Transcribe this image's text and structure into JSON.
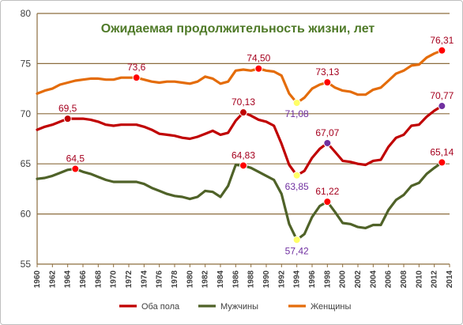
{
  "chart_data": {
    "type": "line",
    "title": "Ожидаемая продолжительность жизни, лет",
    "title_color": "#4f7a28",
    "ylim": [
      55,
      80
    ],
    "yticks": [
      55,
      60,
      65,
      70,
      75,
      80
    ],
    "xticks": [
      1960,
      1962,
      1964,
      1966,
      1968,
      1970,
      1972,
      1974,
      1976,
      1978,
      1980,
      1982,
      1984,
      1986,
      1988,
      1990,
      1992,
      1994,
      1996,
      1998,
      2000,
      2002,
      2004,
      2006,
      2008,
      2010,
      2012,
      2014
    ],
    "xlim": [
      1960,
      2014
    ],
    "legend_position": "bottom",
    "grid": "horizontal",
    "series": [
      {
        "name": "Оба пола",
        "color": "#c00000",
        "label_color": "#a5001e",
        "x": [
          1960,
          1961,
          1962,
          1963,
          1964,
          1965,
          1966,
          1967,
          1968,
          1969,
          1970,
          1971,
          1972,
          1973,
          1974,
          1975,
          1976,
          1977,
          1978,
          1979,
          1980,
          1981,
          1982,
          1983,
          1984,
          1985,
          1986,
          1987,
          1988,
          1989,
          1990,
          1991,
          1992,
          1993,
          1994,
          1995,
          1996,
          1997,
          1998,
          1999,
          2000,
          2001,
          2002,
          2003,
          2004,
          2005,
          2006,
          2007,
          2008,
          2009,
          2010,
          2011,
          2012,
          2013
        ],
        "y": [
          68.4,
          68.7,
          68.9,
          69.2,
          69.5,
          69.5,
          69.5,
          69.4,
          69.2,
          68.9,
          68.8,
          68.9,
          68.9,
          68.9,
          68.7,
          68.4,
          68.0,
          67.9,
          67.8,
          67.6,
          67.5,
          67.7,
          68.0,
          68.3,
          67.9,
          68.1,
          69.3,
          70.13,
          69.8,
          69.4,
          69.2,
          68.8,
          67.0,
          64.9,
          63.85,
          64.3,
          65.6,
          66.5,
          67.07,
          66.2,
          65.3,
          65.2,
          65.0,
          64.9,
          65.3,
          65.4,
          66.7,
          67.6,
          67.9,
          68.8,
          68.9,
          69.7,
          70.3,
          70.77
        ],
        "labels": [
          {
            "x": 1964,
            "y": 69.5,
            "text": "69,5",
            "pos": "above",
            "marker": "#c00000"
          },
          {
            "x": 1987,
            "y": 70.13,
            "text": "70,13",
            "pos": "above",
            "marker": "#c00000"
          },
          {
            "x": 1994,
            "y": 63.85,
            "text": "63,85",
            "pos": "below",
            "marker": "#ffff66",
            "color": "#7030a0"
          },
          {
            "x": 1998,
            "y": 67.07,
            "text": "67,07",
            "pos": "above",
            "marker": "#7030a0"
          },
          {
            "x": 2013,
            "y": 70.77,
            "text": "70,77",
            "pos": "above",
            "marker": "#7030a0"
          }
        ]
      },
      {
        "name": "Мужчины",
        "color": "#4f6228",
        "label_color": "#a5001e",
        "x": [
          1960,
          1961,
          1962,
          1963,
          1964,
          1965,
          1966,
          1967,
          1968,
          1969,
          1970,
          1971,
          1972,
          1973,
          1974,
          1975,
          1976,
          1977,
          1978,
          1979,
          1980,
          1981,
          1982,
          1983,
          1984,
          1985,
          1986,
          1987,
          1988,
          1989,
          1990,
          1991,
          1992,
          1993,
          1994,
          1995,
          1996,
          1997,
          1998,
          1999,
          2000,
          2001,
          2002,
          2003,
          2004,
          2005,
          2006,
          2007,
          2008,
          2009,
          2010,
          2011,
          2012,
          2013
        ],
        "y": [
          63.5,
          63.6,
          63.8,
          64.1,
          64.4,
          64.5,
          64.2,
          64.0,
          63.7,
          63.4,
          63.2,
          63.2,
          63.2,
          63.2,
          63.0,
          62.6,
          62.3,
          62.0,
          61.8,
          61.7,
          61.5,
          61.7,
          62.3,
          62.2,
          61.7,
          62.8,
          64.9,
          64.83,
          64.6,
          64.2,
          63.8,
          63.4,
          62.0,
          59.0,
          57.42,
          58.0,
          59.7,
          60.8,
          61.22,
          60.2,
          59.1,
          59.0,
          58.7,
          58.6,
          58.9,
          58.9,
          60.4,
          61.4,
          61.9,
          62.8,
          63.1,
          64.0,
          64.6,
          65.14
        ],
        "labels": [
          {
            "x": 1965,
            "y": 64.5,
            "text": "64,5",
            "pos": "above",
            "marker": "#ff0000"
          },
          {
            "x": 1987,
            "y": 64.83,
            "text": "64,83",
            "pos": "above",
            "marker": "#ff0000"
          },
          {
            "x": 1994,
            "y": 57.42,
            "text": "57,42",
            "pos": "below",
            "marker": "#ffff66",
            "color": "#7030a0"
          },
          {
            "x": 1998,
            "y": 61.22,
            "text": "61,22",
            "pos": "above",
            "marker": "#ff0000"
          },
          {
            "x": 2013,
            "y": 65.14,
            "text": "65,14",
            "pos": "above",
            "marker": "#ff0000"
          }
        ]
      },
      {
        "name": "Женщины",
        "color": "#e46c0a",
        "label_color": "#a5001e",
        "x": [
          1960,
          1961,
          1962,
          1963,
          1964,
          1965,
          1966,
          1967,
          1968,
          1969,
          1970,
          1971,
          1972,
          1973,
          1974,
          1975,
          1976,
          1977,
          1978,
          1979,
          1980,
          1981,
          1982,
          1983,
          1984,
          1985,
          1986,
          1987,
          1988,
          1989,
          1990,
          1991,
          1992,
          1993,
          1994,
          1995,
          1996,
          1997,
          1998,
          1999,
          2000,
          2001,
          2002,
          2003,
          2004,
          2005,
          2006,
          2007,
          2008,
          2009,
          2010,
          2011,
          2012,
          2013
        ],
        "y": [
          72.0,
          72.3,
          72.5,
          72.9,
          73.1,
          73.3,
          73.4,
          73.5,
          73.5,
          73.4,
          73.4,
          73.6,
          73.6,
          73.6,
          73.4,
          73.2,
          73.1,
          73.2,
          73.2,
          73.1,
          73.0,
          73.2,
          73.7,
          73.5,
          73.0,
          73.2,
          74.3,
          74.4,
          74.3,
          74.5,
          74.3,
          74.2,
          73.8,
          72.0,
          71.08,
          71.6,
          72.5,
          72.9,
          73.13,
          72.6,
          72.3,
          72.2,
          71.9,
          71.9,
          72.4,
          72.6,
          73.3,
          74.0,
          74.3,
          74.8,
          74.9,
          75.6,
          76.0,
          76.31
        ],
        "labels": [
          {
            "x": 1973,
            "y": 73.6,
            "text": "73,6",
            "pos": "above",
            "marker": "#ff0000"
          },
          {
            "x": 1989,
            "y": 74.5,
            "text": "74,50",
            "pos": "above",
            "marker": "#ff0000"
          },
          {
            "x": 1994,
            "y": 71.08,
            "text": "71,08",
            "pos": "below",
            "marker": "#ffff66",
            "color": "#7030a0"
          },
          {
            "x": 1998,
            "y": 73.13,
            "text": "73,13",
            "pos": "above",
            "marker": "#ff0000"
          },
          {
            "x": 2013,
            "y": 76.31,
            "text": "76,31",
            "pos": "above",
            "marker": "#ff0000"
          }
        ]
      }
    ]
  }
}
